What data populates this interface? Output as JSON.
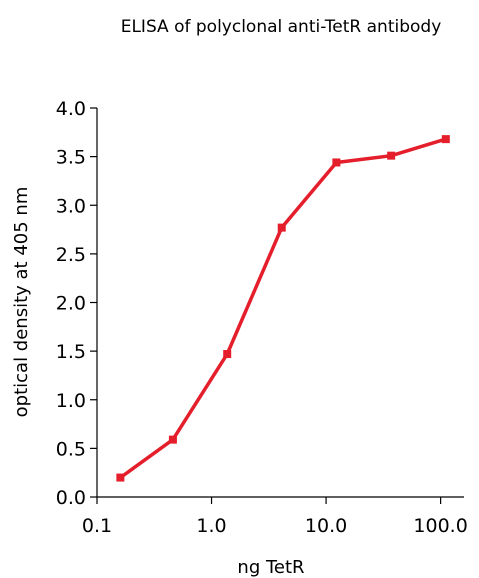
{
  "chart_data": {
    "type": "line",
    "title": "ELISA of polyclonal anti-TetR antibody",
    "xlabel": "ng TetR",
    "ylabel": "optical density at 405 nm",
    "xscale": "log",
    "xlim": [
      0.1,
      160
    ],
    "ylim": [
      0,
      4.0
    ],
    "x_ticks": [
      0.1,
      1.0,
      10.0,
      100.0
    ],
    "x_tick_labels": [
      "0.1",
      "1.0",
      "10.0",
      "100.0"
    ],
    "y_ticks": [
      0,
      0.5,
      1.0,
      1.5,
      2.0,
      2.5,
      3.0,
      3.5,
      4.0
    ],
    "y_tick_labels": [
      "0.0",
      "0.5",
      "1.0",
      "1.5",
      "2.0",
      "2.5",
      "3.0",
      "3.5",
      "4.0"
    ],
    "grid": false,
    "legend": "none",
    "series": [
      {
        "color": "#e41e2b",
        "marker": "square",
        "x": [
          0.16,
          0.46,
          1.37,
          4.1,
          12.3,
          37,
          111
        ],
        "y": [
          0.2,
          0.59,
          1.47,
          2.77,
          3.44,
          3.51,
          3.68
        ]
      }
    ]
  }
}
